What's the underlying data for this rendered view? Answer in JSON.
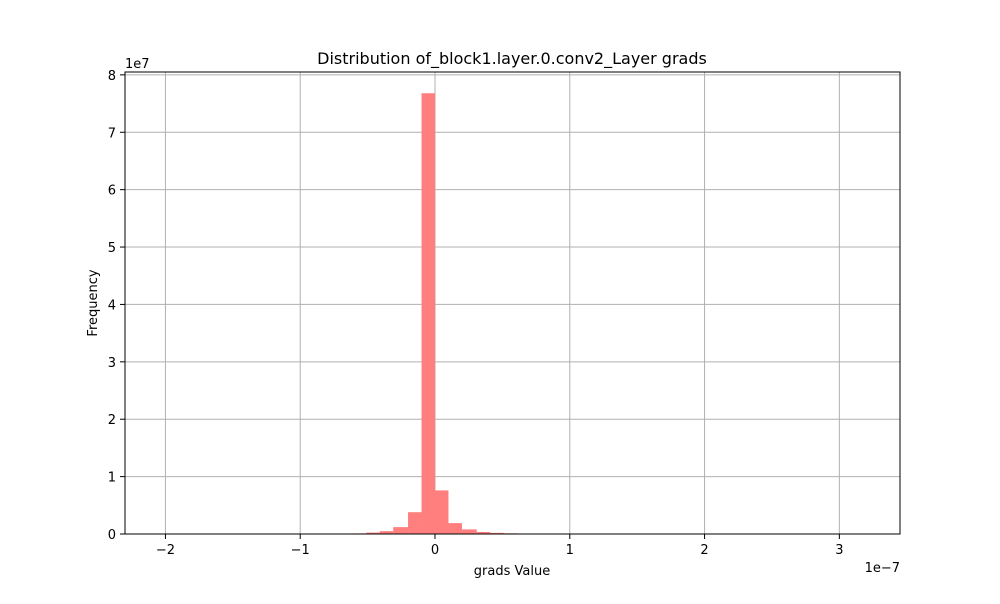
{
  "chart_data": {
    "type": "bar",
    "title": "Distribution of_block1.layer.0.conv2_Layer grads",
    "xlabel": "grads Value",
    "ylabel": "Frequency",
    "x_offset_text": "1e−7",
    "y_offset_text": "1e7",
    "x_scale": 1e-07,
    "y_scale": 10000000.0,
    "xlim": [
      -2.3e-07,
      3.45e-07
    ],
    "ylim": [
      0,
      80500000
    ],
    "x_ticks": [
      -2e-07,
      -1e-07,
      0,
      1e-07,
      2e-07,
      3e-07
    ],
    "x_tick_labels": [
      "−2",
      "−1",
      "0",
      "1",
      "2",
      "3"
    ],
    "y_ticks": [
      0,
      10000000,
      20000000,
      30000000,
      40000000,
      50000000,
      60000000,
      70000000,
      80000000
    ],
    "y_tick_labels": [
      "0",
      "1",
      "2",
      "3",
      "4",
      "5",
      "6",
      "7",
      "8"
    ],
    "grid": true,
    "bar_color": "#ff7f7f",
    "bin_edges": [
      -7.2e-08,
      -6.1e-08,
      -5.1e-08,
      -4.1e-08,
      -3.1e-08,
      -2e-08,
      -1e-08,
      0,
      1e-08,
      2e-08,
      3.1e-08,
      4.1e-08,
      5.1e-08,
      6.1e-08,
      7.2e-08,
      8.2e-08
    ],
    "counts": [
      50000,
      100000,
      250000,
      500000,
      1200000,
      3800000,
      76800000,
      7600000,
      1900000,
      800000,
      350000,
      200000,
      120000,
      80000,
      40000
    ]
  }
}
